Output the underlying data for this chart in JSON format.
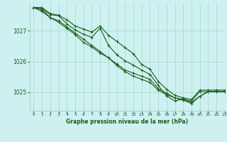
{
  "title": "Graphe pression niveau de la mer (hPa)",
  "bg_color": "#cff0f0",
  "grid_color": "#aaddcc",
  "line_color": "#1a5e1a",
  "xlim": [
    -0.5,
    23
  ],
  "ylim": [
    1024.4,
    1027.9
  ],
  "yticks": [
    1025,
    1026,
    1027
  ],
  "xticks": [
    0,
    1,
    2,
    3,
    4,
    5,
    6,
    7,
    8,
    9,
    10,
    11,
    12,
    13,
    14,
    15,
    16,
    17,
    18,
    19,
    20,
    21,
    22,
    23
  ],
  "series": [
    [
      1027.75,
      1027.75,
      1027.55,
      1027.5,
      1027.35,
      1027.15,
      1027.05,
      1026.95,
      1027.15,
      1026.85,
      1026.65,
      1026.45,
      1026.25,
      1025.9,
      1025.75,
      1025.35,
      1025.1,
      1024.9,
      1024.82,
      1024.77,
      1025.07,
      1025.07,
      1025.07,
      1025.07
    ],
    [
      1027.75,
      1027.7,
      1027.52,
      1027.48,
      1027.22,
      1027.02,
      1026.88,
      1026.78,
      1027.08,
      1026.52,
      1026.22,
      1026.02,
      1025.88,
      1025.72,
      1025.58,
      1025.22,
      1024.88,
      1024.72,
      1024.78,
      1024.72,
      1025.02,
      1025.02,
      1025.02,
      1025.02
    ],
    [
      1027.75,
      1027.68,
      1027.42,
      1027.32,
      1027.12,
      1026.92,
      1026.72,
      1026.52,
      1026.32,
      1026.12,
      1025.92,
      1025.72,
      1025.62,
      1025.52,
      1025.42,
      1025.12,
      1024.97,
      1024.82,
      1024.77,
      1024.67,
      1024.87,
      1025.02,
      1025.02,
      1025.02
    ],
    [
      1027.75,
      1027.62,
      1027.42,
      1027.27,
      1027.07,
      1026.87,
      1026.62,
      1026.47,
      1026.27,
      1026.12,
      1025.87,
      1025.67,
      1025.52,
      1025.42,
      1025.32,
      1025.07,
      1024.92,
      1024.82,
      1024.74,
      1024.64,
      1024.87,
      1025.02,
      1025.02,
      1025.02
    ]
  ]
}
